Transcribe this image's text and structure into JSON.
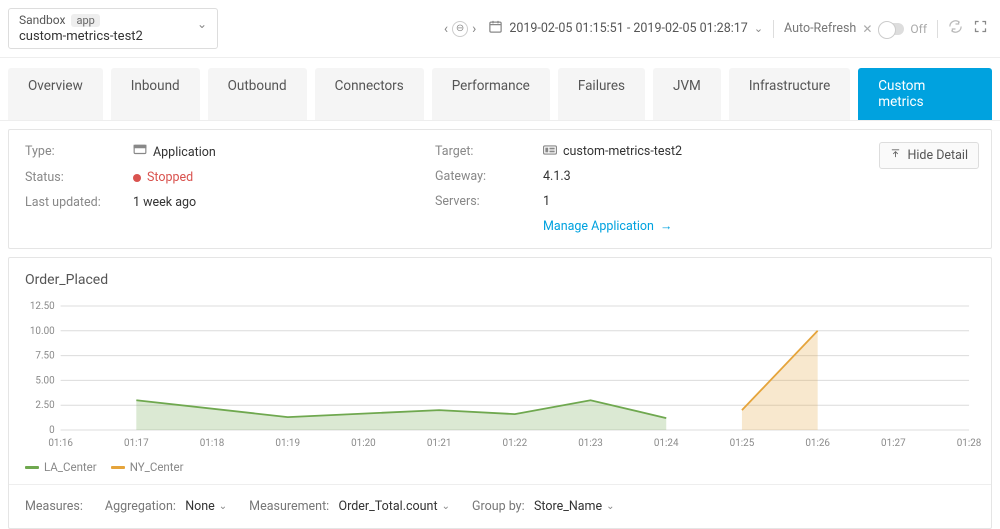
{
  "env": {
    "name": "Sandbox",
    "badge": "app",
    "selected": "custom-metrics-test2"
  },
  "timerange": {
    "text": "2019-02-05 01:15:51 - 2019-02-05 01:28:17"
  },
  "autorefresh": {
    "label": "Auto-Refresh",
    "state_label": "Off"
  },
  "tabs": [
    {
      "label": "Overview",
      "active": false
    },
    {
      "label": "Inbound",
      "active": false
    },
    {
      "label": "Outbound",
      "active": false
    },
    {
      "label": "Connectors",
      "active": false
    },
    {
      "label": "Performance",
      "active": false
    },
    {
      "label": "Failures",
      "active": false
    },
    {
      "label": "JVM",
      "active": false
    },
    {
      "label": "Infrastructure",
      "active": false
    },
    {
      "label": "Custom metrics",
      "active": true
    }
  ],
  "details": {
    "type_label": "Type:",
    "type_value": "Application",
    "status_label": "Status:",
    "status_value": "Stopped",
    "status_color": "#d9534f",
    "updated_label": "Last updated:",
    "updated_value": "1 week ago",
    "target_label": "Target:",
    "target_value": "custom-metrics-test2",
    "gateway_label": "Gateway:",
    "gateway_value": "4.1.3",
    "servers_label": "Servers:",
    "servers_value": "1",
    "manage_link": "Manage Application",
    "hide_detail": "Hide Detail"
  },
  "chart": {
    "title": "Order_Placed",
    "type": "area",
    "ylim": [
      0,
      12.5
    ],
    "ytick_step": 2.5,
    "yticks": [
      "0",
      "2.50",
      "5.00",
      "7.50",
      "10.00",
      "12.50"
    ],
    "x_categories": [
      "01:16",
      "01:17",
      "01:18",
      "01:19",
      "01:20",
      "01:21",
      "01:22",
      "01:23",
      "01:24",
      "01:25",
      "01:26",
      "01:27",
      "01:28"
    ],
    "background_color": "#ffffff",
    "grid_color": "#dcdcdc",
    "axis_label_color": "#8a8a8a",
    "axis_label_fontsize": 10,
    "line_width": 1.8,
    "fill_opacity": 0.25,
    "series": [
      {
        "name": "LA_Center",
        "color": "#6fa84f",
        "points": [
          {
            "xi": 1,
            "y": 3.0
          },
          {
            "xi": 3,
            "y": 1.3
          },
          {
            "xi": 5,
            "y": 2.0
          },
          {
            "xi": 6,
            "y": 1.6
          },
          {
            "xi": 7,
            "y": 3.0
          },
          {
            "xi": 8,
            "y": 1.2
          }
        ]
      },
      {
        "name": "NY_Center",
        "color": "#e5a43b",
        "points": [
          {
            "xi": 9,
            "y": 2.0
          },
          {
            "xi": 10,
            "y": 10.0
          }
        ]
      }
    ]
  },
  "measures": {
    "title": "Measures:",
    "aggregation_label": "Aggregation:",
    "aggregation_value": "None",
    "measurement_label": "Measurement:",
    "measurement_value": "Order_Total.count",
    "groupby_label": "Group by:",
    "groupby_value": "Store_Name"
  }
}
